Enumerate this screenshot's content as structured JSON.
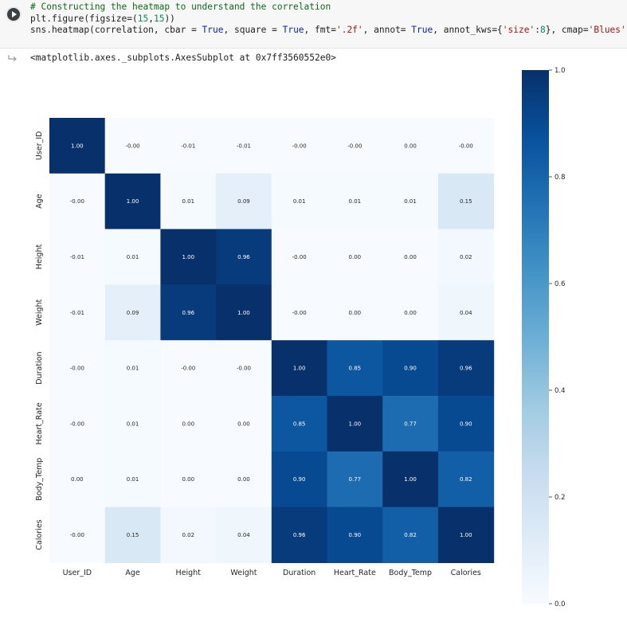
{
  "cell": {
    "code_lines": [
      [
        {
          "t": "# Constructing the heatmap to understand the correlation",
          "c": "comment"
        }
      ],
      [
        {
          "t": "plt.figure(figsize=(",
          "c": ""
        },
        {
          "t": "15",
          "c": "num"
        },
        {
          "t": ",",
          "c": ""
        },
        {
          "t": "15",
          "c": "num"
        },
        {
          "t": "))",
          "c": ""
        }
      ],
      [
        {
          "t": "sns.heatmap(correlation, cbar = ",
          "c": ""
        },
        {
          "t": "True",
          "c": "kw"
        },
        {
          "t": ", square = ",
          "c": ""
        },
        {
          "t": "True",
          "c": "kw"
        },
        {
          "t": ", fmt=",
          "c": ""
        },
        {
          "t": "'.2f'",
          "c": "str"
        },
        {
          "t": ", annot= ",
          "c": ""
        },
        {
          "t": "True",
          "c": "kw"
        },
        {
          "t": ", annot_kws={",
          "c": ""
        },
        {
          "t": "'size'",
          "c": "str"
        },
        {
          "t": ":",
          "c": ""
        },
        {
          "t": "8",
          "c": "num"
        },
        {
          "t": "}, cmap=",
          "c": ""
        },
        {
          "t": "'Blues'",
          "c": "str"
        },
        {
          "t": ")",
          "c": ""
        }
      ]
    ],
    "output_text": "<matplotlib.axes._subplots.AxesSubplot at 0x7ff3560552e0>"
  },
  "colors": {
    "cmap_stops": [
      "#f7fbff",
      "#deebf7",
      "#c6dbef",
      "#9ecae1",
      "#6baed6",
      "#4292c6",
      "#2171b5",
      "#08519c",
      "#08306b"
    ],
    "comment": "#0d6b15",
    "keyword": "#0e24a8",
    "string": "#a31515",
    "number": "#0b8a60"
  },
  "chart_data": {
    "type": "heatmap",
    "labels": [
      "User_ID",
      "Age",
      "Height",
      "Weight",
      "Duration",
      "Heart_Rate",
      "Body_Temp",
      "Calories"
    ],
    "values": [
      [
        1.0,
        -0.0,
        -0.01,
        -0.01,
        -0.0,
        -0.0,
        0.0,
        -0.0
      ],
      [
        -0.0,
        1.0,
        0.01,
        0.09,
        0.01,
        0.01,
        0.01,
        0.15
      ],
      [
        -0.01,
        0.01,
        1.0,
        0.96,
        -0.0,
        0.0,
        0.0,
        0.02
      ],
      [
        -0.01,
        0.09,
        0.96,
        1.0,
        -0.0,
        0.0,
        0.0,
        0.04
      ],
      [
        -0.0,
        0.01,
        -0.0,
        -0.0,
        1.0,
        0.85,
        0.9,
        0.96
      ],
      [
        -0.0,
        0.01,
        0.0,
        0.0,
        0.85,
        1.0,
        0.77,
        0.9
      ],
      [
        0.0,
        0.01,
        0.0,
        0.0,
        0.9,
        0.77,
        1.0,
        0.82
      ],
      [
        -0.0,
        0.15,
        0.02,
        0.04,
        0.96,
        0.9,
        0.82,
        1.0
      ]
    ],
    "annot_format": ".2f",
    "colorbar": {
      "min": 0.0,
      "max": 1.0,
      "ticks": [
        "0.0",
        "0.2",
        "0.4",
        "0.6",
        "0.8",
        "1.0"
      ]
    },
    "cmap": "Blues"
  }
}
